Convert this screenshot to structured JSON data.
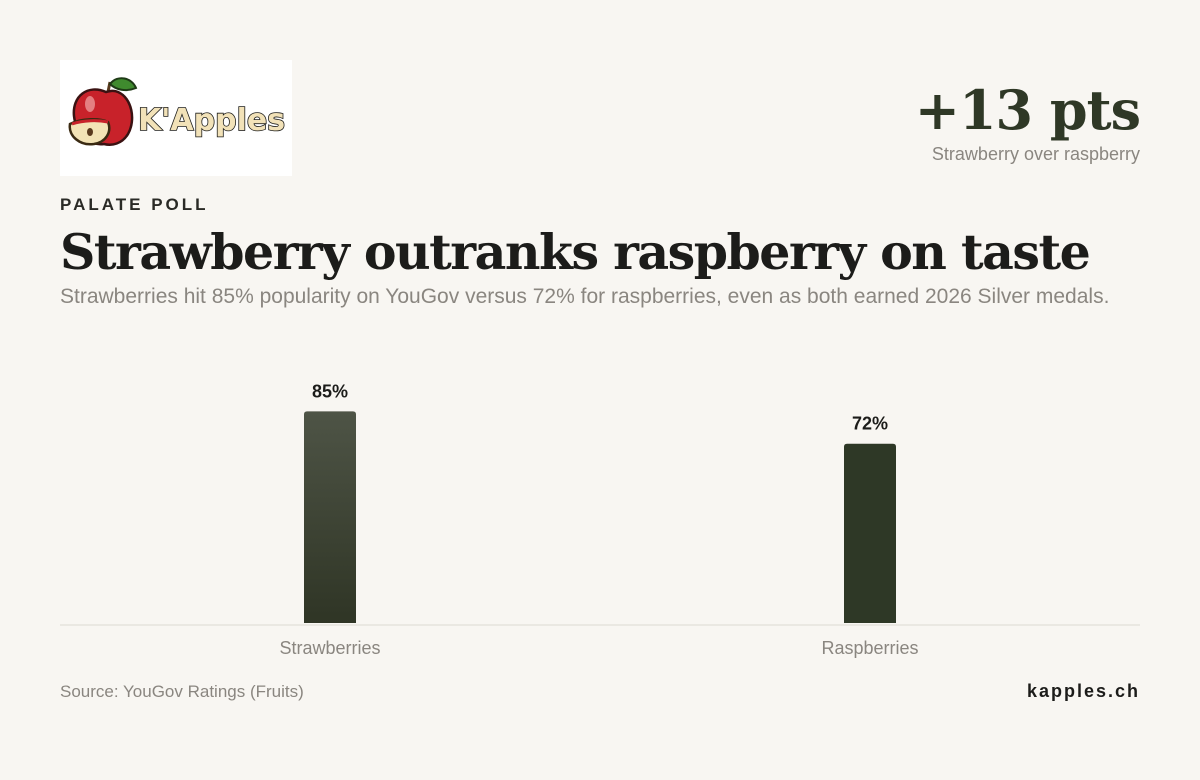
{
  "logo": {
    "name": "kapples-logo",
    "text": "K'Apples"
  },
  "headline_stat": {
    "value": "+13 pts",
    "caption": "Strawberry over raspberry"
  },
  "kicker": "PALATE POLL",
  "title": "Strawberry outranks raspberry on taste",
  "subtitle": "Strawberries hit 85% popularity on YouGov versus 72% for raspberries, even as both earned 2026 Silver medals.",
  "chart_data": {
    "type": "bar",
    "categories": [
      "Strawberries",
      "Raspberries"
    ],
    "values": [
      85,
      72
    ],
    "value_labels": [
      "85%",
      "72%"
    ],
    "ylim": [
      0,
      100
    ],
    "grid": false,
    "colors": [
      "#4e5446",
      "#2e3826"
    ]
  },
  "footer": {
    "source": "Source: YouGov Ratings (Fruits)",
    "site": "kapples.ch"
  },
  "colors": {
    "background": "#f8f6f2",
    "accent": "#2e3826",
    "muted_text": "#8a8680"
  }
}
